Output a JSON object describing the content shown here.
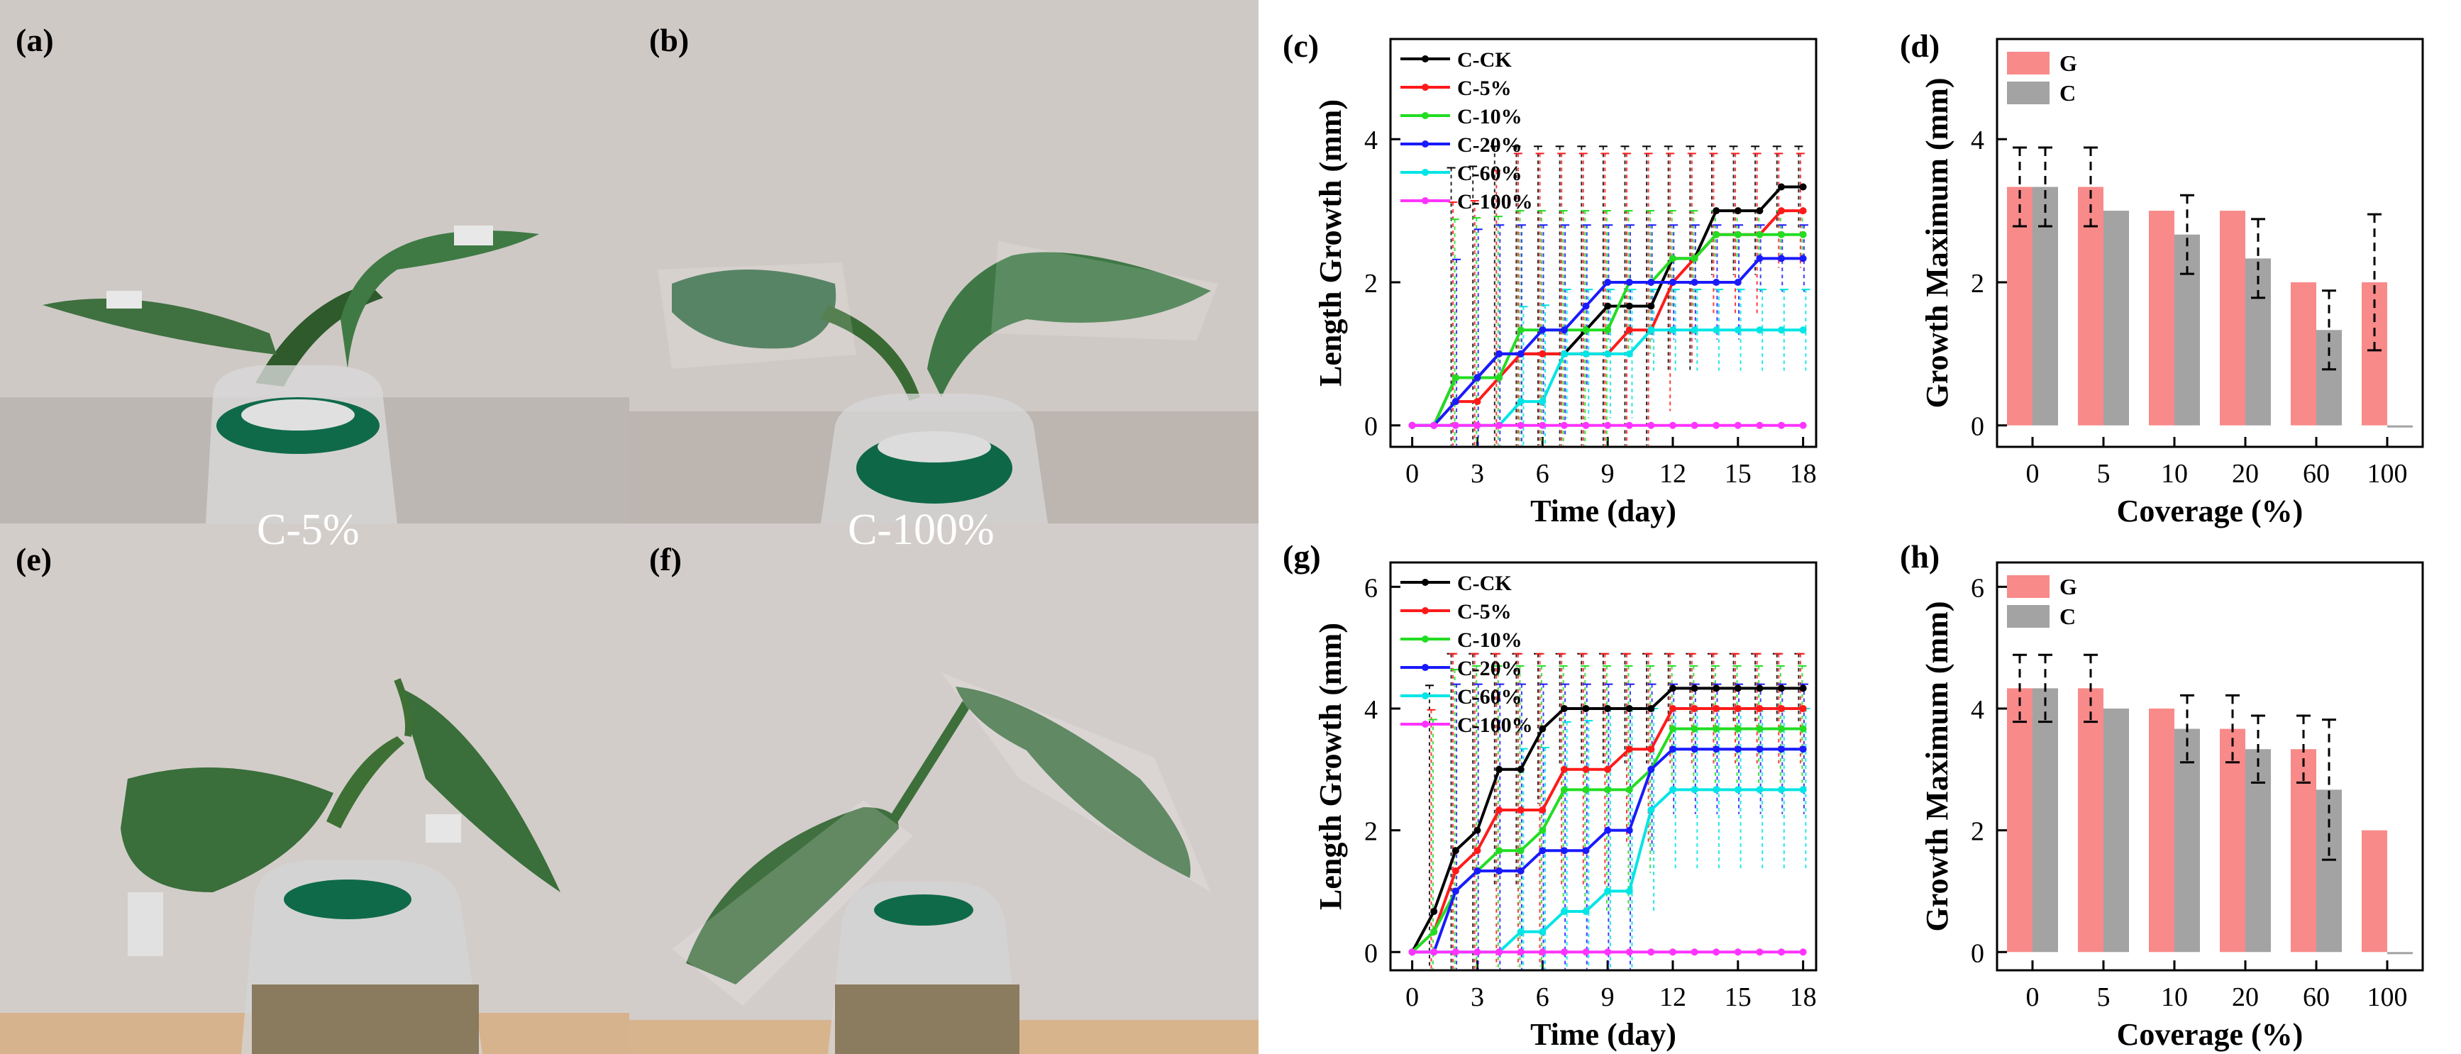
{
  "panels": {
    "a": {
      "label": "(a)",
      "caption": ""
    },
    "b": {
      "label": "(b)",
      "caption": ""
    },
    "e": {
      "label": "(e)",
      "caption": ""
    },
    "f": {
      "label": "(f)",
      "caption": ""
    },
    "c": {
      "label": "(c)"
    },
    "d": {
      "label": "(d)"
    },
    "g": {
      "label": "(g)"
    },
    "h": {
      "label": "(h)"
    }
  },
  "captions": {
    "a": "C-5%",
    "b": "C-100%"
  },
  "colors": {
    "C-CK": "#000000",
    "C-5%": "#ff1a1a",
    "C-10%": "#22dd22",
    "C-20%": "#1a1aff",
    "C-60%": "#00e5e5",
    "C-100%": "#ff33ff",
    "G": "#f88a8a",
    "C": "#a3a3a3"
  },
  "chart_data": [
    {
      "id": "c",
      "type": "line",
      "xlabel": "Time (day)",
      "ylabel": "Length Growth (mm)",
      "xlim": [
        -1,
        18.6
      ],
      "ylim": [
        -0.3,
        5.4
      ],
      "xticks": [
        0,
        3,
        6,
        9,
        12,
        15,
        18
      ],
      "yticks": [
        0,
        2,
        4
      ],
      "x": [
        0,
        1,
        2,
        3,
        4,
        5,
        6,
        7,
        8,
        9,
        10,
        11,
        12,
        13,
        14,
        15,
        16,
        17,
        18
      ],
      "series": [
        {
          "name": "C-CK",
          "values": [
            0,
            0,
            0.667,
            0.667,
            1,
            1,
            1,
            1,
            1.333,
            1.667,
            1.667,
            1.667,
            2.333,
            2.333,
            3,
            3,
            3,
            3.333,
            3.333
          ]
        },
        {
          "name": "C-5%",
          "values": [
            0,
            0,
            0.333,
            0.333,
            0.667,
            1,
            1,
            1,
            1,
            1,
            1.333,
            1.333,
            2,
            2.333,
            2.667,
            2.667,
            2.667,
            3,
            3
          ]
        },
        {
          "name": "C-10%",
          "values": [
            0,
            0,
            0.667,
            0.667,
            0.667,
            1.333,
            1.333,
            1.333,
            1.333,
            1.333,
            2,
            2,
            2.333,
            2.333,
            2.667,
            2.667,
            2.667,
            2.667,
            2.667
          ]
        },
        {
          "name": "C-20%",
          "values": [
            0,
            0,
            0.333,
            0.667,
            1,
            1,
            1.333,
            1.333,
            1.667,
            2,
            2,
            2,
            2,
            2,
            2,
            2,
            2.333,
            2.333,
            2.333
          ]
        },
        {
          "name": "C-60%",
          "values": [
            0,
            0,
            0,
            0,
            0,
            0.333,
            0.333,
            1,
            1,
            1,
            1,
            1.333,
            1.333,
            1.333,
            1.333,
            1.333,
            1.333,
            1.333,
            1.333
          ]
        },
        {
          "name": "C-100%",
          "values": [
            0,
            0,
            0,
            0,
            0,
            0,
            0,
            0,
            0,
            0,
            0,
            0,
            0,
            0,
            0,
            0,
            0,
            0,
            0
          ]
        }
      ],
      "error_max": [
        3.9,
        3.8,
        3.0,
        2.8,
        1.9,
        0.0
      ]
    },
    {
      "id": "d",
      "type": "bar",
      "xlabel": "Coverage (%)",
      "ylabel": "Growth Maximum (mm)",
      "ylim": [
        -0.3,
        5.4
      ],
      "yticks": [
        0,
        2,
        4
      ],
      "categories": [
        "0",
        "5",
        "10",
        "20",
        "60",
        "100"
      ],
      "series": [
        {
          "name": "G",
          "values": [
            3.333,
            3.333,
            3.0,
            3.0,
            2.0,
            2.0
          ],
          "errors": [
            0.55,
            0.55,
            0,
            0,
            0,
            0.95
          ]
        },
        {
          "name": "C",
          "values": [
            3.333,
            3.0,
            2.667,
            2.333,
            1.333,
            0.0
          ],
          "errors": [
            0.55,
            0,
            0.55,
            0.55,
            0.55,
            0
          ]
        }
      ]
    },
    {
      "id": "g",
      "type": "line",
      "xlabel": "Time (day)",
      "ylabel": "Length Growth (mm)",
      "xlim": [
        -1,
        18.6
      ],
      "ylim": [
        -0.3,
        6.4
      ],
      "xticks": [
        0,
        3,
        6,
        9,
        12,
        15,
        18
      ],
      "yticks": [
        0,
        2,
        4,
        6
      ],
      "x": [
        0,
        1,
        2,
        3,
        4,
        5,
        6,
        7,
        8,
        9,
        10,
        11,
        12,
        13,
        14,
        15,
        16,
        17,
        18
      ],
      "series": [
        {
          "name": "C-CK",
          "values": [
            0,
            0.667,
            1.667,
            2,
            3,
            3,
            3.667,
            4,
            4,
            4,
            4,
            4,
            4.333,
            4.333,
            4.333,
            4.333,
            4.333,
            4.333,
            4.333
          ]
        },
        {
          "name": "C-5%",
          "values": [
            0,
            0.333,
            1.333,
            1.667,
            2.333,
            2.333,
            2.333,
            3,
            3,
            3,
            3.333,
            3.333,
            4,
            4,
            4,
            4,
            4,
            4,
            4
          ]
        },
        {
          "name": "C-10%",
          "values": [
            0,
            0.333,
            1,
            1.333,
            1.667,
            1.667,
            2,
            2.667,
            2.667,
            2.667,
            2.667,
            3,
            3.667,
            3.667,
            3.667,
            3.667,
            3.667,
            3.667,
            3.667
          ]
        },
        {
          "name": "C-20%",
          "values": [
            0,
            0,
            1,
            1.333,
            1.333,
            1.333,
            1.667,
            1.667,
            1.667,
            2,
            2,
            3,
            3.333,
            3.333,
            3.333,
            3.333,
            3.333,
            3.333,
            3.333
          ]
        },
        {
          "name": "C-60%",
          "values": [
            0,
            0,
            0,
            0,
            0,
            0.333,
            0.333,
            0.667,
            0.667,
            1,
            1,
            2.333,
            2.667,
            2.667,
            2.667,
            2.667,
            2.667,
            2.667,
            2.667
          ]
        },
        {
          "name": "C-100%",
          "values": [
            0,
            0,
            0,
            0,
            0,
            0,
            0,
            0,
            0,
            0,
            0,
            0,
            0,
            0,
            0,
            0,
            0,
            0,
            0
          ]
        }
      ],
      "error_max": [
        4.9,
        4.9,
        4.7,
        4.4,
        4.0,
        0.0
      ]
    },
    {
      "id": "h",
      "type": "bar",
      "xlabel": "Coverage (%)",
      "ylabel": "Growth Maximum (mm)",
      "ylim": [
        -0.3,
        6.4
      ],
      "yticks": [
        0,
        2,
        4,
        6
      ],
      "categories": [
        "0",
        "5",
        "10",
        "20",
        "60",
        "100"
      ],
      "series": [
        {
          "name": "G",
          "values": [
            4.333,
            4.333,
            4.0,
            3.667,
            3.333,
            2.0
          ],
          "errors": [
            0.55,
            0.55,
            0,
            0.55,
            0.55,
            0
          ]
        },
        {
          "name": "C",
          "values": [
            4.333,
            4.0,
            3.667,
            3.333,
            2.667,
            0.0
          ],
          "errors": [
            0.55,
            0,
            0.55,
            0.55,
            1.15,
            0
          ]
        }
      ]
    }
  ]
}
